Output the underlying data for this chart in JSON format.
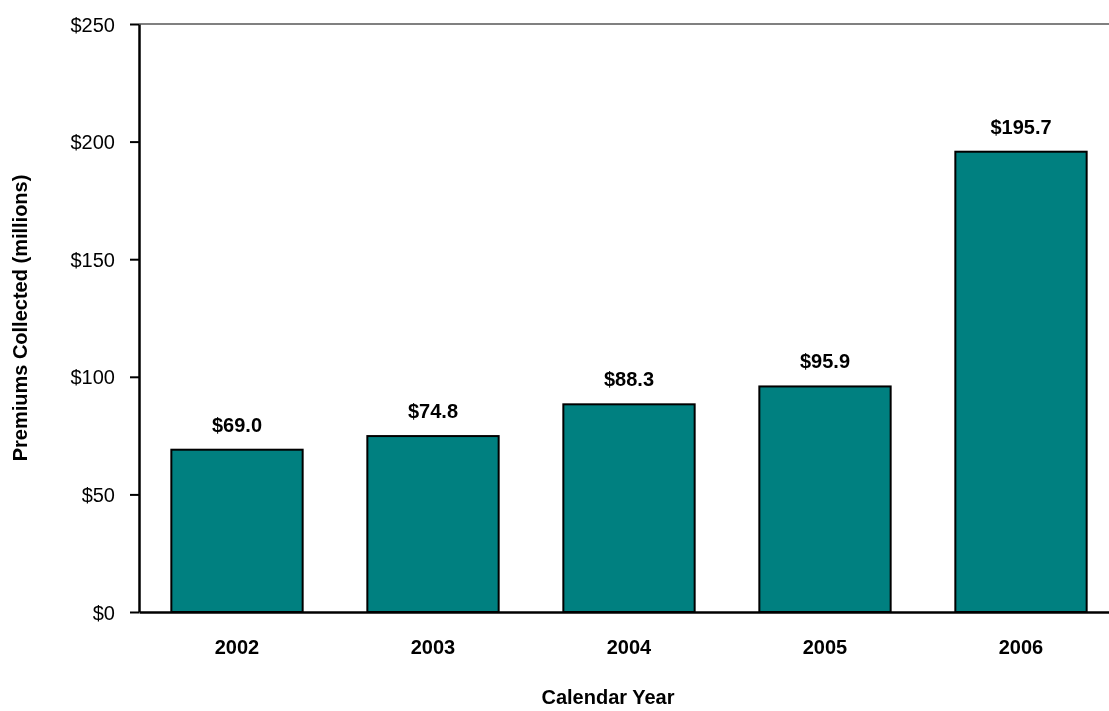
{
  "chart_data": {
    "type": "bar",
    "xlabel": "Calendar Year",
    "ylabel": "Premiums Collected (millions)",
    "categories": [
      "2002",
      "2003",
      "2004",
      "2005",
      "2006"
    ],
    "values": [
      69.0,
      74.8,
      88.3,
      95.9,
      195.7
    ],
    "color": "#008080",
    "value_labels": [
      "$69.0",
      "$74.8",
      "$88.3",
      "$95.9",
      "$195.7"
    ],
    "ylim": [
      0,
      250
    ],
    "yticks": [
      {
        "value": 0,
        "label": "$0"
      },
      {
        "value": 50,
        "label": "$50"
      },
      {
        "value": 100,
        "label": "$100"
      },
      {
        "value": 150,
        "label": "$150"
      },
      {
        "value": 200,
        "label": "$200"
      },
      {
        "value": 250,
        "label": "$250"
      }
    ],
    "ref_lines": [
      {
        "axis": "y",
        "value": 250,
        "color": "#808080"
      }
    ]
  }
}
